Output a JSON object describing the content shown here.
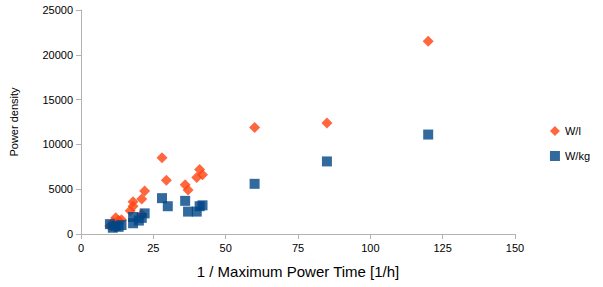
{
  "chart_data": {
    "type": "scatter",
    "x_label": "1 / Maximum Power Time [1/h]",
    "y_label": "Power density",
    "xlim": [
      0,
      150
    ],
    "xticks": [
      0,
      25,
      50,
      75,
      100,
      125,
      150
    ],
    "ylim": [
      0,
      25000
    ],
    "yticks": [
      0,
      5000,
      10000,
      15000,
      20000,
      25000
    ],
    "grid": false,
    "legend": "right",
    "series": [
      {
        "name": "W/l",
        "color": "#ff420e",
        "marker": "diamond",
        "x": [
          120,
          85,
          60,
          42,
          41,
          40,
          36,
          37,
          28,
          29.5,
          22,
          21,
          21,
          18,
          18,
          17,
          12,
          13,
          14,
          10,
          11
        ],
        "values": [
          21500,
          12400,
          11900,
          6600,
          7200,
          6300,
          5500,
          4900,
          8500,
          6000,
          4800,
          3900,
          2200,
          3600,
          3100,
          2600,
          1800,
          1500,
          1600,
          900,
          1300
        ]
      },
      {
        "name": "W/kg",
        "color": "#004586",
        "marker": "square",
        "x": [
          120,
          85,
          60,
          42,
          41,
          40,
          36,
          37,
          28,
          30,
          22,
          21,
          18,
          18,
          20,
          12,
          13,
          10,
          14,
          11
        ],
        "values": [
          11100,
          8100,
          5600,
          3200,
          3100,
          2500,
          3700,
          2500,
          4000,
          3100,
          2300,
          1800,
          1900,
          1200,
          1500,
          900,
          800,
          1100,
          1000,
          700
        ]
      }
    ]
  }
}
